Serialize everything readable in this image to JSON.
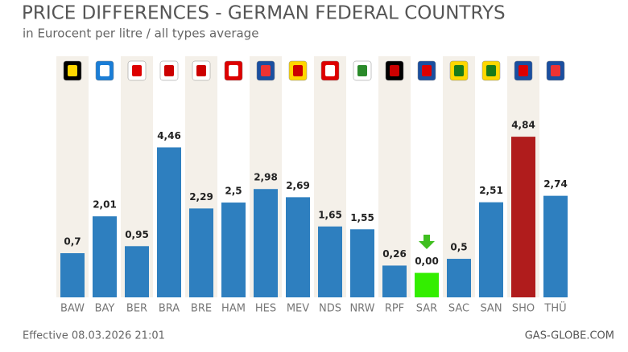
{
  "chart_data": {
    "type": "bar",
    "title": "PRICE DIFFERENCES - GERMAN FEDERAL COUNTRYS",
    "subtitle": "in Eurocent per litre / all types average",
    "categories": [
      "BAW",
      "BAY",
      "BER",
      "BRA",
      "BRE",
      "HAM",
      "HES",
      "MEV",
      "NDS",
      "NRW",
      "RPF",
      "SAR",
      "SAC",
      "SAN",
      "SHO",
      "THÜ"
    ],
    "values": [
      0.7,
      2.01,
      0.95,
      4.46,
      2.29,
      2.5,
      2.98,
      2.69,
      1.65,
      1.55,
      0.26,
      0.0,
      0.5,
      2.51,
      4.84,
      2.74
    ],
    "value_labels": [
      "0,7",
      "2,01",
      "0,95",
      "4,46",
      "2,29",
      "2,5",
      "2,98",
      "2,69",
      "1,65",
      "1,55",
      "0,26",
      "0,00",
      "0,5",
      "2,51",
      "4,84",
      "2,74"
    ],
    "colors": [
      "#2e7fbf",
      "#2e7fbf",
      "#2e7fbf",
      "#2e7fbf",
      "#2e7fbf",
      "#2e7fbf",
      "#2e7fbf",
      "#2e7fbf",
      "#2e7fbf",
      "#2e7fbf",
      "#2e7fbf",
      "#33ee00",
      "#2e7fbf",
      "#2e7fbf",
      "#b01c1c",
      "#2e7fbf"
    ],
    "ylim": [
      -0.87,
      7.7
    ],
    "footer_left": "Effective 08.03.2026 21:01",
    "footer_right": "GAS-GLOBE.COM"
  }
}
